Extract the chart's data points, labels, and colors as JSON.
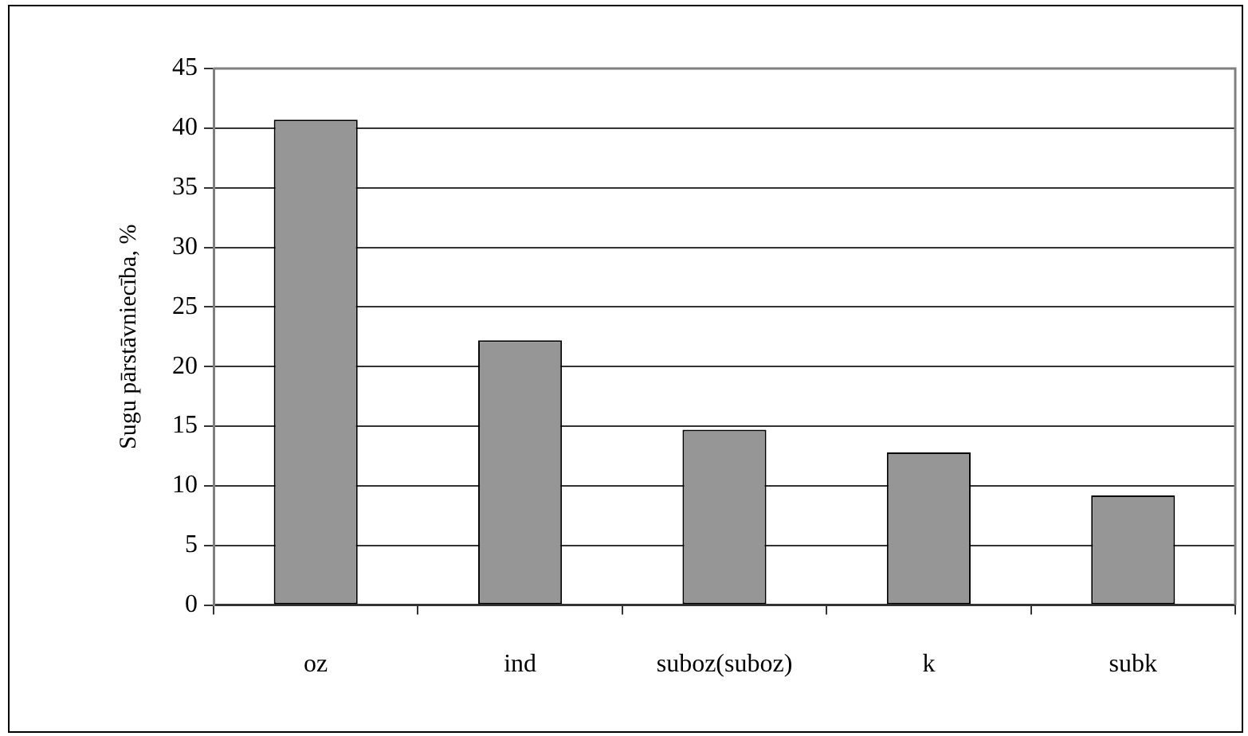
{
  "chart_data": {
    "type": "bar",
    "ylabel": "Sugu pārstāvniecība, %",
    "categories": [
      "oz",
      "ind",
      "suboz(suboz)",
      "k",
      "subk"
    ],
    "values": [
      40.7,
      22.2,
      14.7,
      12.8,
      9.2
    ],
    "color": "#969696",
    "ylim": [
      0,
      45
    ],
    "yticks": [
      0,
      5,
      10,
      15,
      20,
      25,
      30,
      35,
      40,
      45
    ],
    "grid": "y",
    "legend": false
  }
}
